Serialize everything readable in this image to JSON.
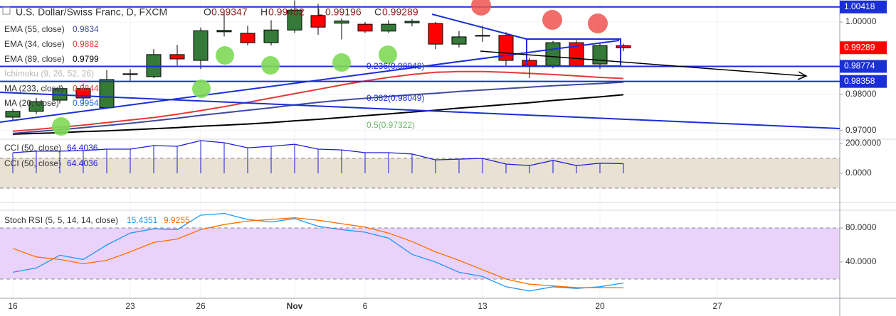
{
  "chart_data": {
    "type": "candlestick",
    "title": "U.S. Dollar/Swiss Franc, D, FXCM",
    "ohlc_labels": [
      "O",
      "H",
      "L",
      "C"
    ],
    "categories": [
      "16",
      null,
      null,
      null,
      null,
      "23",
      null,
      null,
      "26",
      null,
      null,
      null,
      "Nov",
      null,
      null,
      "6",
      null,
      null,
      null,
      null,
      "13",
      null,
      null,
      null,
      null,
      "20",
      null,
      null,
      null,
      null,
      "27",
      null,
      null,
      null,
      null
    ],
    "open": [
      0.9737,
      0.9753,
      0.9784,
      0.9816,
      0.9763,
      0.9855,
      0.9849,
      0.991,
      0.9894,
      0.9973,
      0.9969,
      0.9943,
      0.9978,
      1.0018,
      0.9997,
      0.9994,
      0.9975,
      0.9998,
      0.9996,
      0.9939,
      0.9963,
      0.9963,
      0.9894,
      0.988,
      0.9943,
      0.9884,
      0.99347,
      null,
      null,
      null,
      null,
      null,
      null,
      null,
      null
    ],
    "high": [
      0.976,
      0.979,
      0.9825,
      0.983,
      0.9867,
      0.987,
      0.9925,
      0.9937,
      0.9985,
      1.0025,
      0.999,
      1.0005,
      1.006,
      1.005,
      1.001,
      1.0,
      1.0005,
      1.0008,
      1.0,
      0.9975,
      0.999,
      0.9972,
      0.99,
      0.9948,
      0.995,
      0.994,
      0.99402,
      null,
      null,
      null,
      null,
      null,
      null,
      null,
      null
    ],
    "low": [
      0.9728,
      0.9745,
      0.9775,
      0.977,
      0.976,
      0.9838,
      0.9845,
      0.988,
      0.987,
      0.996,
      0.9935,
      0.9935,
      0.997,
      0.9965,
      0.9952,
      0.997,
      0.997,
      0.9988,
      0.9925,
      0.993,
      0.9945,
      0.9878,
      0.9845,
      0.9872,
      0.9875,
      0.987,
      0.99196,
      null,
      null,
      null,
      null,
      null,
      null,
      null,
      null
    ],
    "close": [
      0.9753,
      0.978,
      0.9816,
      0.979,
      0.9841,
      0.9857,
      0.991,
      0.9898,
      0.9976,
      0.9977,
      0.9943,
      0.9978,
      1.0033,
      0.9986,
      1.0003,
      0.9975,
      0.9994,
      1.0002,
      0.9939,
      0.9959,
      0.9962,
      0.9894,
      0.988,
      0.9943,
      0.9878,
      0.9935,
      0.99289,
      null,
      null,
      null,
      null,
      null,
      null,
      null,
      null
    ],
    "up_color": "#357a38",
    "down_color": "#ff0000",
    "series": [
      {
        "color": "#000000",
        "values": [
          0.969,
          0.9692,
          0.9694,
          0.9697,
          0.9699,
          0.9702,
          0.9705,
          0.9708,
          0.9712,
          0.9715,
          0.9718,
          0.9722,
          0.9727,
          0.9731,
          0.9736,
          0.9741,
          0.9746,
          0.9751,
          0.9756,
          0.9762,
          0.9767,
          0.9772,
          0.9777,
          0.9783,
          0.9788,
          0.9793,
          0.9799,
          null,
          null,
          null,
          null,
          null,
          null,
          null,
          null
        ]
      },
      {
        "color": "#3f4aa0",
        "values": [
          0.9692,
          0.9697,
          0.9702,
          0.9708,
          0.9714,
          0.972,
          0.9727,
          0.9734,
          0.9742,
          0.9749,
          0.9756,
          0.9763,
          0.9771,
          0.9778,
          0.9784,
          0.9789,
          0.9794,
          0.9799,
          0.9803,
          0.9808,
          0.9812,
          0.9816,
          0.982,
          0.9824,
          0.9827,
          0.983,
          0.9834,
          null,
          null,
          null,
          null,
          null,
          null,
          null,
          null
        ]
      },
      {
        "color": "#e53935",
        "values": [
          0.9698,
          0.9703,
          0.9709,
          0.9715,
          0.9722,
          0.9729,
          0.9736,
          0.9745,
          0.9755,
          0.9766,
          0.9778,
          0.979,
          0.9802,
          0.9814,
          0.9826,
          0.9837,
          0.9847,
          0.9855,
          0.9861,
          0.9863,
          0.9863,
          0.9861,
          0.9858,
          0.9855,
          0.9851,
          0.9847,
          0.9844,
          null,
          null,
          null,
          null,
          null,
          null,
          null,
          null
        ]
      }
    ],
    "indicators": [
      {
        "name": "EMA (55, close)",
        "value": "0.9834",
        "color": "#3f4aa0"
      },
      {
        "name": "EMA (34, close)",
        "value": "0.9882",
        "color": "#e53935"
      },
      {
        "name": "EMA (89, close)",
        "value": "0.9799",
        "color": "#000000"
      },
      {
        "name": "Ichimoku (9, 26, 52, 26)",
        "value": "",
        "color": "#bbbbbb"
      },
      {
        "name": "MA (233, close)",
        "value": "0.9844",
        "color": "#e53935"
      },
      {
        "name": "MA (20, close)",
        "value": "0.9954",
        "color": "#2962ff"
      }
    ],
    "annotations": [
      "0.236(0.98948)",
      "0.382(0.98049)",
      "0.5(0.97322)"
    ],
    "hlines": [
      1.00418,
      0.98774,
      0.98358
    ],
    "hline_color": "#1a2fd6",
    "ylim": [
      0.9678,
      1.0061
    ],
    "yticks": [
      {
        "value": 1.0,
        "label": "1.00000"
      },
      {
        "value": 0.98,
        "label": "0.98000"
      },
      {
        "value": 0.97,
        "label": "0.97000"
      }
    ],
    "panes": [
      {
        "type": "line",
        "title": "CCI (50, close)",
        "series": [
          {
            "color": "#1c1cd6",
            "values": [
              138,
              148,
              148,
              152,
              162,
              162,
              186,
              181,
              219,
              205,
              171,
              181,
              195,
              162,
              157,
              138,
              138,
              129,
              90,
              95,
              100,
              62,
              52,
              86,
              52,
              67,
              64.4036,
              null,
              null,
              null,
              null,
              null,
              null,
              null,
              null
            ]
          }
        ],
        "band": [
          -100,
          100
        ],
        "band_color": "#e9e1d3",
        "ylim": [
          -186,
          224
        ],
        "yticks": [
          {
            "value": 200,
            "label": "200.0000"
          },
          {
            "value": 0,
            "label": "0.0000"
          }
        ]
      },
      {
        "type": "line",
        "title": "Stoch RSI (5, 5, 14, 14, close)",
        "series": [
          {
            "color": "#2196f3",
            "values": [
              28,
              33,
              48,
              43,
              60,
              74,
              79,
              78,
              95,
              97,
              90,
              87,
              91,
              82,
              78,
              75,
              68,
              49,
              40,
              28,
              23,
              11,
              6,
              11,
              9,
              11,
              15.4351,
              null,
              null,
              null,
              null,
              null,
              null,
              null,
              null
            ]
          },
          {
            "color": "#ff6d00",
            "values": [
              56,
              46,
              43,
              38,
              42,
              52,
              63,
              67,
              78,
              84,
              88,
              90,
              92,
              89,
              85,
              81,
              74,
              64,
              52,
              42,
              31,
              20,
              14,
              12,
              10,
              10,
              9.9255,
              null,
              null,
              null,
              null,
              null,
              null,
              null,
              null
            ]
          }
        ],
        "band": [
          20,
          80
        ],
        "band_color": "#ead3fb",
        "ylim": [
          0,
          100
        ],
        "yticks": [
          {
            "value": 80,
            "label": "80.0000"
          },
          {
            "value": 40,
            "label": "40.0000"
          }
        ]
      }
    ]
  }
}
